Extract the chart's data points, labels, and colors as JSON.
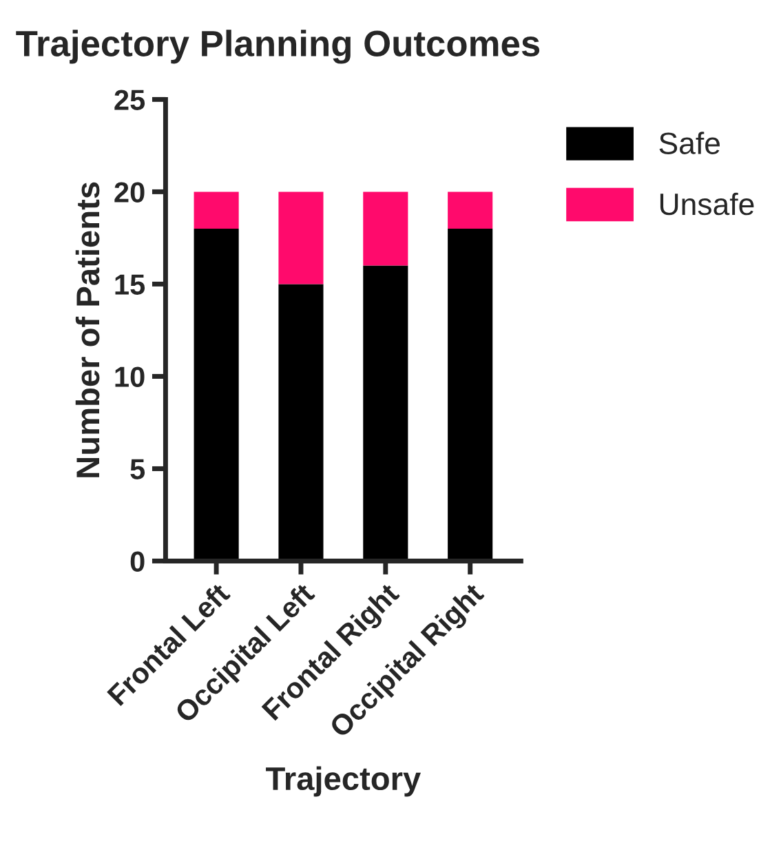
{
  "chart_data": {
    "type": "bar",
    "title": "Trajectory Planning Outcomes",
    "xlabel": "Trajectory",
    "ylabel": "Number of Patients",
    "categories": [
      "Frontal Left",
      "Occipital Left",
      "Frontal Right",
      "Occipital Right"
    ],
    "series": [
      {
        "name": "Safe",
        "color": "#000000",
        "values": [
          18,
          15,
          16,
          18
        ]
      },
      {
        "name": "Unsafe",
        "color": "#ff0a6c",
        "values": [
          2,
          5,
          4,
          2
        ]
      }
    ],
    "stacked": true,
    "ylim": [
      0,
      25
    ],
    "yticks": [
      0,
      5,
      10,
      15,
      20,
      25
    ],
    "grid": false,
    "legend": "top right"
  }
}
